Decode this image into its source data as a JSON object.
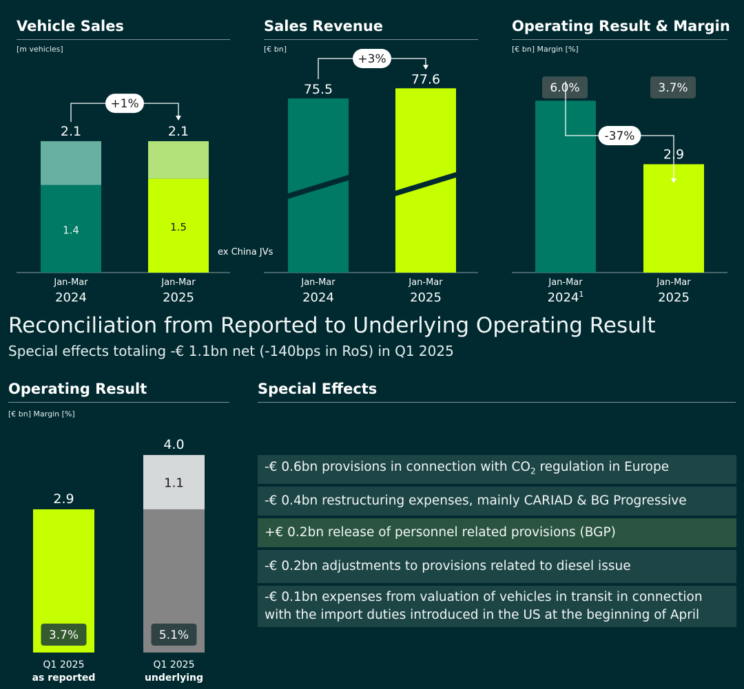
{
  "colors": {
    "background": "#002a30",
    "teal": "#007a64",
    "teal_light": "#67b0a2",
    "lime": "#c6ff00",
    "lime_light": "#b3e17a",
    "dark_gray": "#858585",
    "light_gray": "#d6d9d9",
    "badge": "#3e4f50",
    "margin_badge_green": "#355a30",
    "margin_badge_gray": "#2f4344",
    "effect_row": "#1d4546",
    "effect_row_positive": "#2a5440"
  },
  "panels": {
    "vehicle_sales": {
      "title": "Vehicle Sales",
      "unit": "[m vehicles]"
    },
    "sales_revenue": {
      "title": "Sales Revenue",
      "unit": "[€ bn]"
    },
    "operating_margin": {
      "title": "Operating Result & Margin",
      "unit": "[€ bn] Margin [%]"
    },
    "operating_result": {
      "title": "Operating Result",
      "unit": "[€ bn] Margin [%]"
    },
    "special_effects": {
      "title": "Special Effects"
    }
  },
  "reconciliation": {
    "title": "Reconciliation from Reported to Underlying Operating Result",
    "subtitle": "Special effects totaling -€ 1.1bn net (-140bps in RoS) in Q1 2025"
  },
  "special_effects": [
    {
      "pre": "-€ 0.6bn provisions in connection with CO",
      "sub": "2",
      "post": " regulation in Europe",
      "positive": false
    },
    {
      "text": "-€ 0.4bn restructuring expenses, mainly CARIAD & BG Progressive",
      "positive": false
    },
    {
      "text": "+€ 0.2bn release of personnel related provisions (BGP)",
      "positive": true
    },
    {
      "text": "-€ 0.2bn adjustments to provisions related to diesel issue",
      "positive": false
    },
    {
      "text": "-€ 0.1bn expenses from valuation of vehicles in transit in connection\nwith the import duties introduced in the US at the beginning of April",
      "positive": false
    }
  ],
  "chart_data": [
    {
      "type": "bar",
      "title": "Vehicle Sales",
      "unit": "[m vehicles]",
      "categories": [
        {
          "period": "Jan-Mar",
          "year": "2024"
        },
        {
          "period": "Jan-Mar",
          "year": "2025"
        }
      ],
      "series": [
        {
          "name": "ex China JVs",
          "values": [
            1.4,
            1.5
          ]
        },
        {
          "values": [
            0.7,
            0.6
          ]
        }
      ],
      "totals": [
        "2.1",
        "2.1"
      ],
      "segment_labels": [
        "1.4",
        "1.5"
      ],
      "change": "+1%",
      "ylim": [
        0,
        2.75
      ]
    },
    {
      "type": "bar",
      "title": "Sales Revenue",
      "unit": "[€ bn]",
      "axis_break": true,
      "categories": [
        {
          "period": "Jan-Mar",
          "year": "2024"
        },
        {
          "period": "Jan-Mar",
          "year": "2025"
        }
      ],
      "values": [
        75.5,
        77.6
      ],
      "labels": [
        "75.5",
        "77.6"
      ],
      "change": "+3%"
    },
    {
      "type": "bar",
      "title": "Operating Result & Margin",
      "unit": "[€ bn] Margin [%]",
      "categories": [
        {
          "period": "Jan-Mar",
          "year": "2024",
          "footnote": "1"
        },
        {
          "period": "Jan-Mar",
          "year": "2025",
          "footnote": ""
        }
      ],
      "values": [
        4.6,
        2.9
      ],
      "labels": [
        "4.6",
        "2.9"
      ],
      "margins": [
        "6.0%",
        "3.7%"
      ],
      "change": "-37%",
      "ylim": [
        0,
        7.0
      ]
    },
    {
      "type": "bar",
      "title": "Operating Result",
      "unit": "[€ bn] Margin [%]",
      "categories": [
        {
          "line1": "Q1 2025",
          "line2": "as reported"
        },
        {
          "line1": "Q1 2025",
          "line2": "underlying"
        }
      ],
      "series": [
        {
          "values": [
            2.9,
            2.9
          ]
        },
        {
          "values": [
            0,
            1.1
          ]
        }
      ],
      "totals": [
        "2.9",
        "4.0"
      ],
      "segment_labels": [
        "1.1"
      ],
      "margins": [
        "3.7%",
        "5.1%"
      ],
      "ylim": [
        0,
        4.6
      ]
    }
  ]
}
